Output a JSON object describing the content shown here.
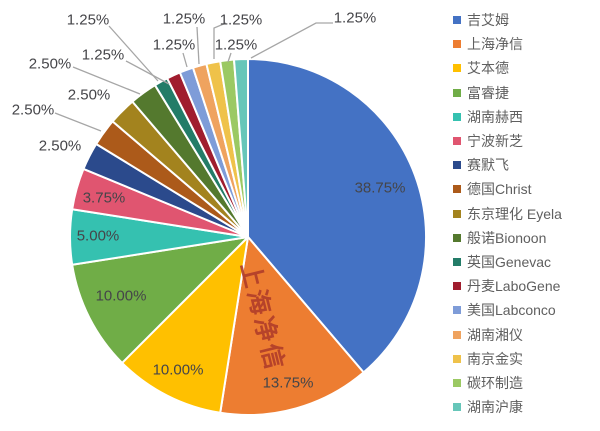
{
  "chart_data": {
    "type": "pie",
    "title": "",
    "legend_position": "right",
    "start_angle_deg": 0,
    "direction": "clockwise",
    "label_format": "0.00%",
    "series": [
      {
        "name": "吉艾姆",
        "value": 38.75,
        "color": "#4472C4"
      },
      {
        "name": "上海净信",
        "value": 13.75,
        "color": "#ED7D31"
      },
      {
        "name": "艾本德",
        "value": 10.0,
        "color": "#FFC000"
      },
      {
        "name": "富睿捷",
        "value": 10.0,
        "color": "#70AD47"
      },
      {
        "name": "湖南赫西",
        "value": 5.0,
        "color": "#35C1B0"
      },
      {
        "name": "宁波新芝",
        "value": 3.75,
        "color": "#E05570"
      },
      {
        "name": "赛默飞",
        "value": 2.5,
        "color": "#2B4A8C"
      },
      {
        "name": "德国Christ",
        "value": 2.5,
        "color": "#AC5A1A"
      },
      {
        "name": "东京理化 Eyela",
        "value": 2.5,
        "color": "#A3831E"
      },
      {
        "name": "般诺Bionoon",
        "value": 2.5,
        "color": "#54792E"
      },
      {
        "name": "英国Genevac",
        "value": 1.25,
        "color": "#237C68"
      },
      {
        "name": "丹麦LaboGene",
        "value": 1.25,
        "color": "#A01D2E"
      },
      {
        "name": "美国Labconco",
        "value": 1.25,
        "color": "#7E9CD8"
      },
      {
        "name": "湖南湘仪",
        "value": 1.25,
        "color": "#EFA35F"
      },
      {
        "name": "南京金实",
        "value": 1.25,
        "color": "#EFC24A"
      },
      {
        "name": "碳环制造",
        "value": 1.25,
        "color": "#9BC963"
      },
      {
        "name": "湖南沪康",
        "value": 1.25,
        "color": "#66C6B9"
      }
    ]
  },
  "watermark": {
    "text": "上海净信",
    "color": "#B23F2A"
  },
  "colors": {
    "background": "#FFFFFF",
    "label_text": "#454549",
    "leader_line": "#A6A6A6",
    "legend_text": "#5F5F5F",
    "slice_border": "#FFFFFF"
  }
}
